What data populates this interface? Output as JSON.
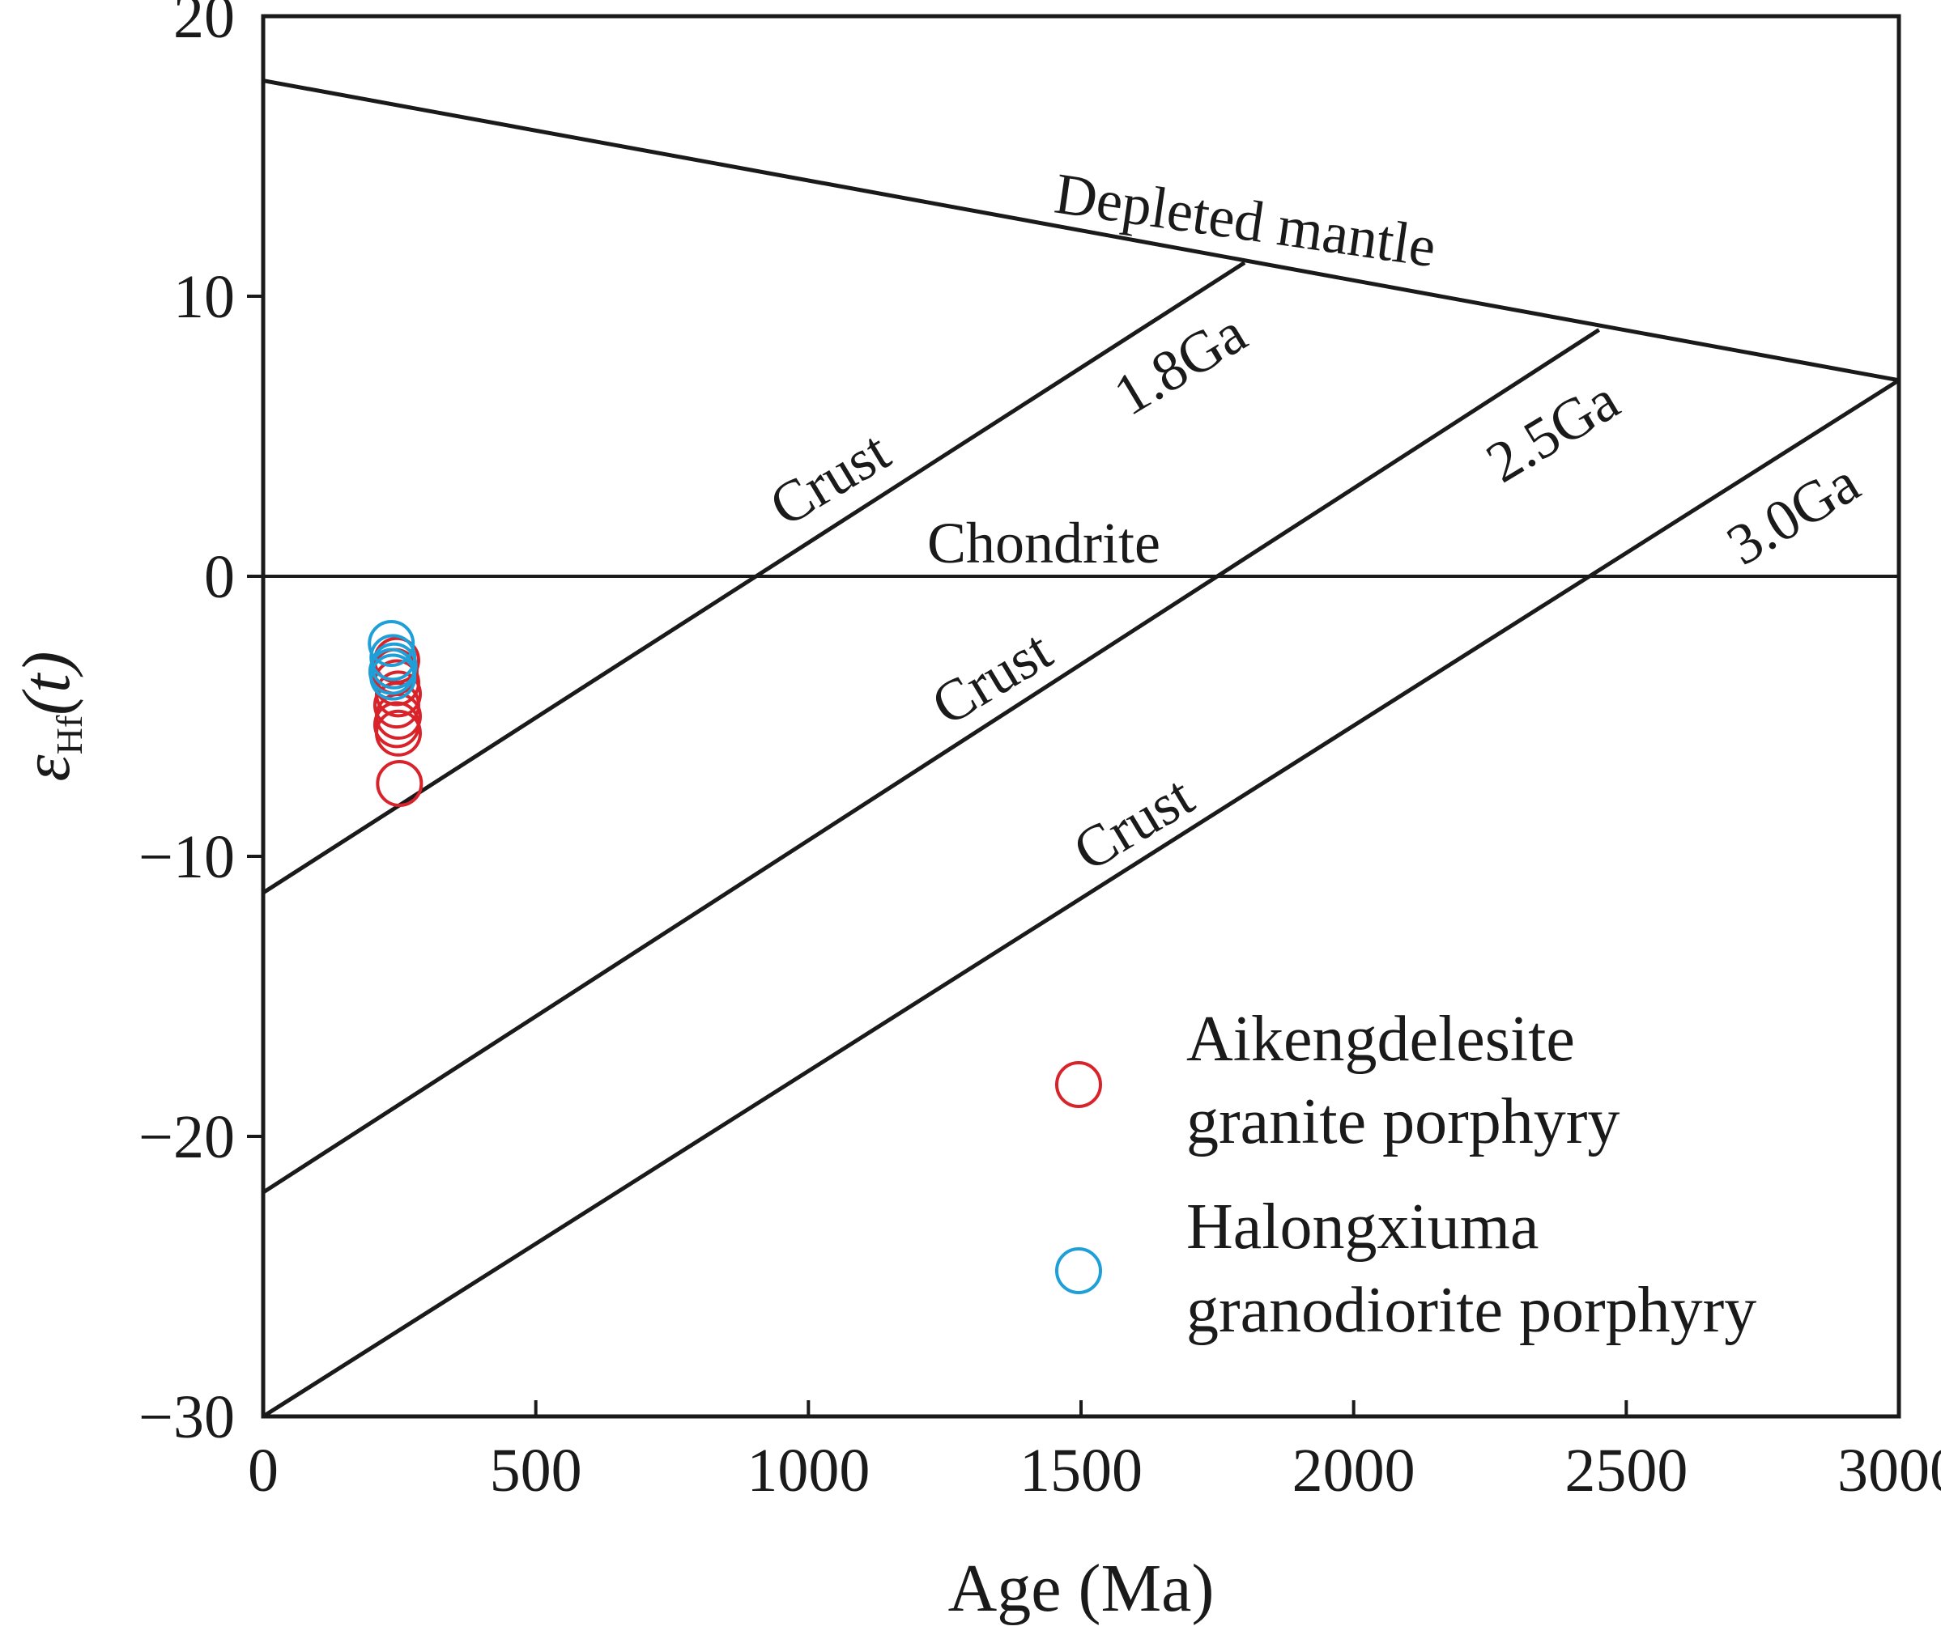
{
  "chart_data": {
    "type": "scatter",
    "xlabel": "Age (Ma)",
    "ylabel_symbol": "ε",
    "ylabel_subscript": "Hf",
    "ylabel_arg": "(t)",
    "xlim": [
      0,
      3000
    ],
    "ylim": [
      -30,
      20
    ],
    "xticks": [
      0,
      500,
      1000,
      1500,
      2000,
      2500,
      3000
    ],
    "yticks": [
      20,
      10,
      0,
      -10,
      -20,
      -30
    ],
    "ytick_labels": [
      "20",
      "10",
      "0",
      "−10",
      "−20",
      "−30"
    ],
    "reference_lines": [
      {
        "name": "depleted-mantle",
        "label": "Depleted mantle",
        "points": [
          [
            0,
            17.7
          ],
          [
            3000,
            7.0
          ]
        ]
      },
      {
        "name": "chondrite",
        "label": "Chondrite",
        "points": [
          [
            0,
            0
          ],
          [
            3000,
            0
          ]
        ]
      },
      {
        "name": "crust-1.8ga",
        "label": "1.8Ga",
        "crust_label": "Crust",
        "points": [
          [
            0,
            -11.3
          ],
          [
            1800,
            11.2
          ]
        ]
      },
      {
        "name": "crust-2.5ga",
        "label": "2.5Ga",
        "crust_label": "Crust",
        "points": [
          [
            0,
            -22.0
          ],
          [
            2450,
            8.8
          ]
        ]
      },
      {
        "name": "crust-3.0ga",
        "label": "3.0Ga",
        "crust_label": "Crust",
        "points": [
          [
            0,
            -30.0
          ],
          [
            3000,
            7.0
          ]
        ]
      }
    ],
    "series": [
      {
        "name": "Aikengdelesite granite porphyry",
        "color": "#d8232a",
        "points": [
          [
            245,
            -3.0
          ],
          [
            242,
            -3.4
          ],
          [
            245,
            -3.8
          ],
          [
            248,
            -4.2
          ],
          [
            245,
            -4.6
          ],
          [
            248,
            -5.0
          ],
          [
            245,
            -5.3
          ],
          [
            248,
            -5.6
          ],
          [
            250,
            -7.4
          ]
        ]
      },
      {
        "name": "Halongxiuma granodiorite porphyry",
        "color": "#1f9fd8",
        "points": [
          [
            235,
            -2.4
          ],
          [
            238,
            -2.9
          ],
          [
            240,
            -3.2
          ],
          [
            236,
            -3.4
          ],
          [
            238,
            -3.6
          ]
        ]
      }
    ],
    "legend": [
      {
        "line1": "Aikengdelesite",
        "line2": "granite porphyry",
        "color": "#d8232a"
      },
      {
        "line1": "Halongxiuma",
        "line2": "granodiorite porphyry",
        "color": "#1f9fd8"
      }
    ],
    "legend_position": "bottom-right"
  }
}
